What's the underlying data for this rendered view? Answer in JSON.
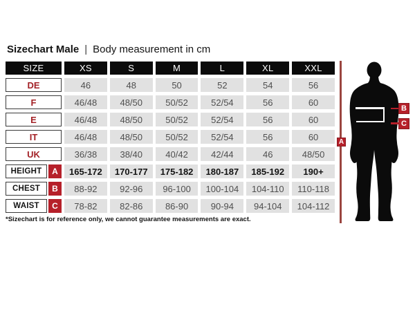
{
  "title": {
    "main": "Sizechart Male",
    "separator": "|",
    "subtitle": "Body measurement in cm"
  },
  "table": {
    "header": [
      "SIZE",
      "XS",
      "S",
      "M",
      "L",
      "XL",
      "XXL"
    ],
    "size_rows": [
      {
        "label": "DE",
        "values": [
          "46",
          "48",
          "50",
          "52",
          "54",
          "56"
        ]
      },
      {
        "label": "F",
        "values": [
          "46/48",
          "48/50",
          "50/52",
          "52/54",
          "56",
          "60"
        ]
      },
      {
        "label": "E",
        "values": [
          "46/48",
          "48/50",
          "50/52",
          "52/54",
          "56",
          "60"
        ]
      },
      {
        "label": "IT",
        "values": [
          "46/48",
          "48/50",
          "50/52",
          "52/54",
          "56",
          "60"
        ]
      },
      {
        "label": "UK",
        "values": [
          "36/38",
          "38/40",
          "40/42",
          "42/44",
          "46",
          "48/50"
        ]
      }
    ],
    "measure_rows": [
      {
        "label": "HEIGHT",
        "badge": "A",
        "bold": true,
        "values": [
          "165-172",
          "170-177",
          "175-182",
          "180-187",
          "185-192",
          "190+"
        ]
      },
      {
        "label": "CHEST",
        "badge": "B",
        "bold": false,
        "values": [
          "88-92",
          "92-96",
          "96-100",
          "100-104",
          "104-110",
          "110-118"
        ]
      },
      {
        "label": "WAIST",
        "badge": "C",
        "bold": false,
        "values": [
          "78-82",
          "82-86",
          "86-90",
          "90-94",
          "94-104",
          "104-112"
        ]
      }
    ]
  },
  "footnote": "*Sizechart is for reference only, we cannot guarantee measurements are exact.",
  "figure": {
    "badge_a": "A",
    "badge_b": "B",
    "badge_c": "C"
  },
  "colors": {
    "badge_red": "#b6202a",
    "label_red": "#a32126",
    "measure_line_red": "#9a453f",
    "cell_gray": "#e1e1e1",
    "header_black": "#0b0b0b"
  }
}
